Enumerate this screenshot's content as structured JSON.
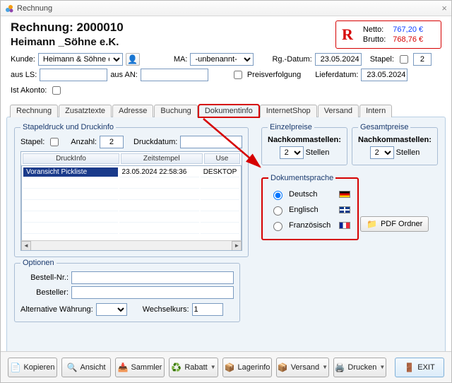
{
  "window": {
    "title": "Rechnung"
  },
  "header": {
    "line1": "Rechnung: 2000010",
    "line2": "Heimann _Söhne e.K.",
    "totals": {
      "R": "R",
      "netto_label": "Netto:",
      "netto_value": "767,20 €",
      "brutto_label": "Brutto:",
      "brutto_value": "768,76 €"
    }
  },
  "fields": {
    "kunde_label": "Kunde:",
    "kunde_value": "Heimann & Söhne e.K.",
    "ma_label": "MA:",
    "ma_value": "-unbenannt-",
    "rgdatum_label": "Rg.-Datum:",
    "rgdatum_value": "23.05.2024",
    "stapel_label": "Stapel:",
    "stapel_value": "2",
    "ausls_label": "aus LS:",
    "ausls_value": "",
    "ausan_label": "aus AN:",
    "ausan_value": "",
    "preisverfolgung_label": "Preisverfolgung",
    "lieferdatum_label": "Lieferdatum:",
    "lieferdatum_value": "23.05.2024",
    "istakonto_label": "Ist Akonto:"
  },
  "tabs": {
    "items": [
      "Rechnung",
      "Zusatztexte",
      "Adresse",
      "Buchung",
      "Dokumentinfo",
      "InternetShop",
      "Versand",
      "Intern"
    ],
    "active_index": 4
  },
  "stapeldruck": {
    "legend": "Stapeldruck und Druckinfo",
    "stapel_label": "Stapel:",
    "anzahl_label": "Anzahl:",
    "anzahl_value": "2",
    "druckdatum_label": "Druckdatum:",
    "druckdatum_value": "",
    "grid": {
      "columns": [
        "DruckInfo",
        "Zeitstempel",
        "Use"
      ],
      "rows": [
        [
          "Voransicht Pickliste",
          "23.05.2024 22:58:36",
          "DESKTOP"
        ]
      ]
    }
  },
  "einzelpreise": {
    "legend": "Einzelpreise",
    "label": "Nachkommastellen:",
    "value": "2",
    "suffix": "Stellen"
  },
  "gesamtpreise": {
    "legend": "Gesamtpreise",
    "label": "Nachkommastellen:",
    "value": "2",
    "suffix": "Stellen"
  },
  "sprache": {
    "legend": "Dokumentsprache",
    "options": [
      {
        "label": "Deutsch",
        "flag": "de",
        "selected": true
      },
      {
        "label": "Englisch",
        "flag": "en",
        "selected": false
      },
      {
        "label": "Französisch",
        "flag": "fr",
        "selected": false
      }
    ]
  },
  "pdf_button": "PDF Ordner",
  "optionen": {
    "legend": "Optionen",
    "bestellnr_label": "Bestell-Nr.:",
    "besteller_label": "Besteller:",
    "altwaehrung_label": "Alternative Währung:",
    "wechselkurs_label": "Wechselkurs:",
    "wechselkurs_value": "1"
  },
  "bottom": {
    "kopieren": "Kopieren",
    "ansicht": "Ansicht",
    "sammler": "Sammler",
    "rabatt": "Rabatt",
    "lagerinfo": "Lagerinfo",
    "versand": "Versand",
    "drucken": "Drucken",
    "exit": "EXIT"
  },
  "colors": {
    "highlight": "#d60000",
    "panel_bg": "#eef4f9",
    "netto": "#1040ff"
  }
}
